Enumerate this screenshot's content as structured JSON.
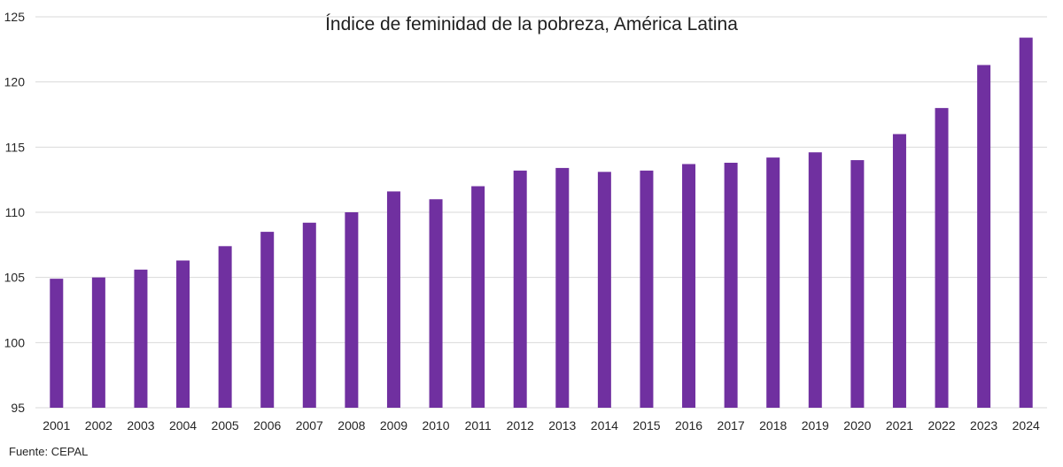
{
  "chart_data": {
    "type": "bar",
    "title": "Índice de feminidad de la pobreza, América Latina",
    "xlabel": "",
    "ylabel": "",
    "source": "Fuente: CEPAL",
    "categories": [
      "2001",
      "2002",
      "2003",
      "2004",
      "2005",
      "2006",
      "2007",
      "2008",
      "2009",
      "2010",
      "2011",
      "2012",
      "2013",
      "2014",
      "2015",
      "2016",
      "2017",
      "2018",
      "2019",
      "2020",
      "2021",
      "2022",
      "2023",
      "2024"
    ],
    "values": [
      104.9,
      105.0,
      105.6,
      106.3,
      107.4,
      108.5,
      109.2,
      110.0,
      111.6,
      111.0,
      112.0,
      113.2,
      113.4,
      113.1,
      113.2,
      113.7,
      113.8,
      114.2,
      114.6,
      114.0,
      116.0,
      118.0,
      121.3,
      123.4
    ],
    "ylim": [
      95,
      125
    ],
    "yticks": [
      95,
      100,
      105,
      110,
      115,
      120,
      125
    ],
    "grid": true,
    "legend": "none",
    "bar_color": "#7030a0"
  }
}
